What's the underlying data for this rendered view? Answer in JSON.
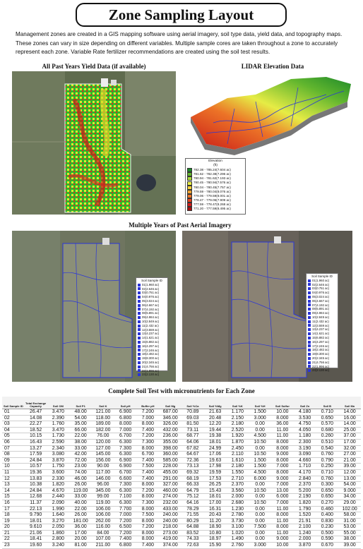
{
  "title": "Zone Sampling Layout",
  "intro": "Management zones are created in a GIS mapping software using aerial imagery, soil type data, yield data, and topography maps.  These zones can vary in size depending on different variables.  Multiple sample cores are taken throughout a zone to accurately represent each zone.  Variable Rate fertilizer recommendations are created using the soil test results.",
  "captions": {
    "yield": "All Past Years Yield Data (if available)",
    "lidar": "LIDAR Elevation Data",
    "aerial": "Multiple Years of Past Aerial Imagery",
    "soil_test": "Complete Soil Test with micronutrients for Each Zone"
  },
  "elevation_legend": {
    "title": "Elevation",
    "unit": "(ft)",
    "entries": [
      {
        "label": "782.38 - 785.24(7.604 ac)",
        "color": "#1e8a2a"
      },
      {
        "label": "781.62 - 782.38(7.296 ac)",
        "color": "#62b62e"
      },
      {
        "label": "780.94 - 781.62(7.193 ac)",
        "color": "#a8d83a"
      },
      {
        "label": "780.45 - 780.94(7.576 ac)",
        "color": "#e6ec45"
      },
      {
        "label": "780.04 - 780.45(7.757 ac)",
        "color": "#f6d13b"
      },
      {
        "label": "779.59 - 780.04(8.076 ac)",
        "color": "#f3a330"
      },
      {
        "label": "779.06 - 779.59(8.001 ac)",
        "color": "#ec7327"
      },
      {
        "label": "778.47 - 779.06(7.909 ac)",
        "color": "#e2421f"
      },
      {
        "label": "777.59 - 778.47(8.268 ac)",
        "color": "#d21a1a"
      },
      {
        "label": "771.20 - 777.59(8.495 ac)",
        "color": "#a81010"
      }
    ]
  },
  "sample_legend": {
    "title": "Soil Sample ID",
    "entries": [
      "01(1.960 ac)",
      "02(2.646 ac)",
      "03(0.751 ac)",
      "04(0.976 ac)",
      "05(3.024 ac)",
      "06(4.667 ac)",
      "07(4.192 ac)",
      "08(5.891 ac)",
      "09(4.984 ac)",
      "10(2.849 ac)",
      "11(2.432 ac)",
      "12(3.559 ac)",
      "13(4.237 ac)",
      "14(1.621 ac)",
      "15(6.882 ac)",
      "16(4.297 ac)",
      "17(2.246 ac)",
      "18(2.482 ac)",
      "19(8.300 ac)",
      "20(2.345 ac)",
      "21(4.756 ac)",
      "22(1.996 ac)",
      "23(2.130 ac)"
    ]
  },
  "table": {
    "headers": [
      "Soil Sample ID",
      "Total Exchange Capacity",
      "Soil OM",
      "Soil P1",
      "Soil K",
      "Soil pH",
      "Buffer pH",
      "Soil Mg",
      "Soil %Ca",
      "Soil %Mg",
      "Soil %K",
      "Soil %H",
      "Soil Sulfur",
      "Soil Zn",
      "Soil B",
      "Soil Mn"
    ],
    "rows": [
      [
        "01",
        "26.47",
        "3.470",
        "48.00",
        "121.00",
        "6.900",
        "7.200",
        "687.00",
        "70.89",
        "21.63",
        "1.170",
        "1.500",
        "10.00",
        "4.180",
        "0.710",
        "14.00"
      ],
      [
        "02",
        "14.08",
        "2.390",
        "54.00",
        "118.00",
        "6.800",
        "7.000",
        "346.00",
        "69.03",
        "20.48",
        "2.150",
        "3.000",
        "8.000",
        "3.530",
        "0.650",
        "16.00"
      ],
      [
        "03",
        "22.27",
        "1.760",
        "35.00",
        "189.00",
        "8.000",
        "8.000",
        "326.00",
        "81.50",
        "12.20",
        "2.180",
        "0.00",
        "36.00",
        "4.750",
        "0.570",
        "14.00"
      ],
      [
        "04",
        "18.52",
        "3.470",
        "66.00",
        "182.00",
        "7.000",
        "7.400",
        "432.00",
        "73.11",
        "19.44",
        "2.520",
        "0.00",
        "11.00",
        "4.050",
        "0.680",
        "25.00"
      ],
      [
        "05",
        "10.15",
        "1.730",
        "22.00",
        "76.00",
        "6.700",
        "7.200",
        "236.00",
        "68.77",
        "19.38",
        "1.920",
        "4.500",
        "11.00",
        "1.180",
        "0.260",
        "37.00"
      ],
      [
        "06",
        "16.43",
        "2.590",
        "38.00",
        "120.00",
        "6.300",
        "7.300",
        "355.00",
        "64.06",
        "18.01",
        "1.870",
        "10.50",
        "8.000",
        "2.300",
        "0.510",
        "17.00"
      ],
      [
        "07",
        "13.27",
        "2.340",
        "33.00",
        "127.00",
        "7.300",
        "8.000",
        "398.00",
        "67.82",
        "24.99",
        "2.450",
        "0.00",
        "8.000",
        "3.190",
        "0.540",
        "32.00"
      ],
      [
        "08",
        "17.59",
        "3.080",
        "42.00",
        "145.00",
        "6.300",
        "6.700",
        "360.00",
        "64.67",
        "17.06",
        "2.110",
        "10.50",
        "9.000",
        "3.090",
        "0.760",
        "27.00"
      ],
      [
        "09",
        "24.84",
        "3.870",
        "72.00",
        "156.00",
        "6.900",
        "7.400",
        "585.00",
        "72.36",
        "19.63",
        "1.610",
        "1.500",
        "8.000",
        "4.660",
        "0.790",
        "21.00"
      ],
      [
        "10",
        "10.57",
        "1.750",
        "23.00",
        "90.00",
        "6.900",
        "7.500",
        "228.00",
        "73.13",
        "17.98",
        "2.180",
        "1.500",
        "7.000",
        "1.710",
        "0.250",
        "39.00"
      ],
      [
        "11",
        "19.36",
        "3.600",
        "74.00",
        "117.00",
        "6.700",
        "7.400",
        "455.00",
        "69.32",
        "19.59",
        "1.550",
        "4.500",
        "8.000",
        "4.170",
        "0.710",
        "12.00"
      ],
      [
        "12",
        "13.83",
        "2.330",
        "46.00",
        "146.00",
        "6.600",
        "7.400",
        "291.00",
        "68.19",
        "17.53",
        "2.710",
        "6.000",
        "9.000",
        "2.840",
        "0.760",
        "13.00"
      ],
      [
        "13",
        "10.38",
        "1.820",
        "26.00",
        "96.00",
        "7.300",
        "8.000",
        "327.00",
        "66.33",
        "26.25",
        "2.370",
        "0.00",
        "7.000",
        "2.370",
        "0.300",
        "54.00"
      ],
      [
        "14",
        "24.84",
        "4.670",
        "119.00",
        "345.00",
        "6.300",
        "7.200",
        "460.00",
        "64.79",
        "15.43",
        "3.560",
        "10.50",
        "13.00",
        "5.200",
        "0.650",
        "9.000"
      ],
      [
        "15",
        "12.68",
        "2.440",
        "33.00",
        "99.00",
        "7.100",
        "8.000",
        "274.00",
        "75.12",
        "18.01",
        "2.000",
        "0.00",
        "6.000",
        "2.190",
        "0.650",
        "34.00"
      ],
      [
        "16",
        "11.37",
        "2.090",
        "40.00",
        "119.00",
        "6.300",
        "7.300",
        "232.00",
        "64.16",
        "17.00",
        "2.680",
        "10.50",
        "7.000",
        "1.820",
        "0.270",
        "29.00"
      ],
      [
        "17",
        "22.13",
        "1.990",
        "22.00",
        "106.00",
        "7.700",
        "8.000",
        "433.00",
        "78.29",
        "16.31",
        "1.230",
        "0.00",
        "11.00",
        "1.790",
        "0.460",
        "102.00"
      ],
      [
        "18",
        "9.790",
        "1.640",
        "26.00",
        "106.00",
        "7.000",
        "7.500",
        "240.00",
        "71.55",
        "20.43",
        "2.780",
        "0.00",
        "8.000",
        "1.520",
        "0.400",
        "58.00"
      ],
      [
        "19",
        "18.01",
        "3.270",
        "181.00",
        "262.00",
        "7.200",
        "8.000",
        "240.00",
        "80.29",
        "11.20",
        "3.730",
        "0.00",
        "11.00",
        "21.91",
        "0.830",
        "31.00"
      ],
      [
        "20",
        "9.610",
        "2.050",
        "36.00",
        "116.00",
        "6.500",
        "7.200",
        "218.00",
        "64.88",
        "18.90",
        "3.100",
        "7.500",
        "8.000",
        "2.100",
        "0.230",
        "53.00"
      ],
      [
        "21",
        "21.06",
        "1.860",
        "17.00",
        "84.00",
        "7.200",
        "8.000",
        "273.00",
        "83.52",
        "10.80",
        "1.020",
        "0.00",
        "11.00",
        "1.240",
        "0.500",
        "55.00"
      ],
      [
        "22",
        "18.41",
        "2.800",
        "20.00",
        "107.00",
        "7.400",
        "8.000",
        "419.00",
        "74.33",
        "18.97",
        "1.490",
        "0.00",
        "9.000",
        "2.000",
        "0.590",
        "38.00"
      ],
      [
        "23",
        "19.60",
        "3.240",
        "81.00",
        "211.00",
        "6.800",
        "7.400",
        "374.00",
        "72.63",
        "15.90",
        "2.760",
        "3.000",
        "10.00",
        "3.870",
        "0.670",
        "39.00"
      ]
    ]
  }
}
